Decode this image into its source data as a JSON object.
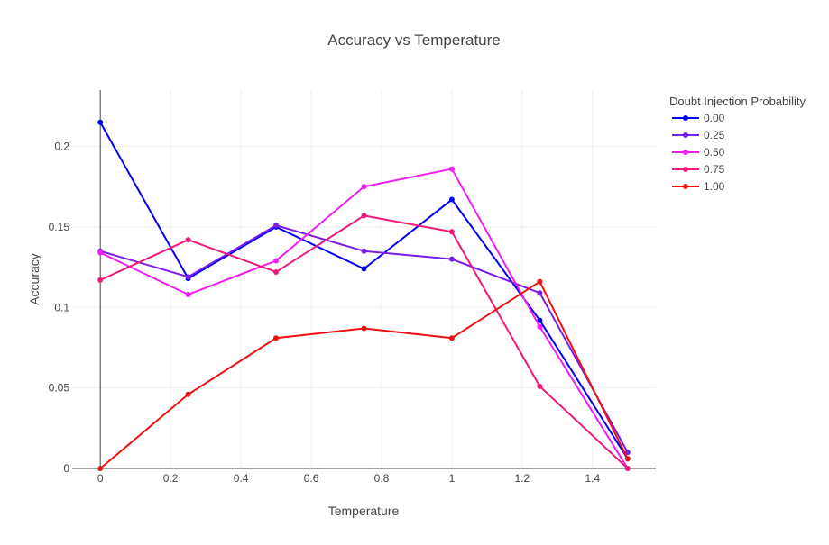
{
  "chart_data": {
    "type": "line",
    "title": "Accuracy vs Temperature",
    "xlabel": "Temperature",
    "ylabel": "Accuracy",
    "x": [
      0,
      0.25,
      0.5,
      0.75,
      1,
      1.25,
      1.5
    ],
    "xlim": [
      -0.08,
      1.58
    ],
    "ylim": [
      0,
      0.235
    ],
    "xticks": [
      0,
      0.2,
      0.4,
      0.6,
      0.8,
      1,
      1.2,
      1.4
    ],
    "xtick_labels": [
      "0",
      "0.2",
      "0.4",
      "0.6",
      "0.8",
      "1",
      "1.2",
      "1.4"
    ],
    "yticks": [
      0,
      0.05,
      0.1,
      0.15,
      0.2
    ],
    "ytick_labels": [
      "0",
      "0.05",
      "0.1",
      "0.15",
      "0.2"
    ],
    "grid": true,
    "legend": {
      "title": "Doubt Injection Probability",
      "position": "top-right"
    },
    "series": [
      {
        "name": "0.00",
        "color": "#0000ee",
        "values": [
          0.215,
          0.118,
          0.15,
          0.124,
          0.167,
          0.092,
          0.006
        ]
      },
      {
        "name": "0.25",
        "color": "#7b1de8",
        "values": [
          0.135,
          0.119,
          0.151,
          0.135,
          0.13,
          0.109,
          0.01
        ]
      },
      {
        "name": "0.50",
        "color": "#f01ef0",
        "values": [
          0.134,
          0.108,
          0.129,
          0.175,
          0.186,
          0.088,
          0.0
        ]
      },
      {
        "name": "0.75",
        "color": "#ee1a7a",
        "values": [
          0.117,
          0.142,
          0.122,
          0.157,
          0.147,
          0.051,
          0.0
        ]
      },
      {
        "name": "1.00",
        "color": "#ee1111",
        "values": [
          0.0,
          0.046,
          0.081,
          0.087,
          0.081,
          0.116,
          0.006
        ]
      }
    ]
  }
}
